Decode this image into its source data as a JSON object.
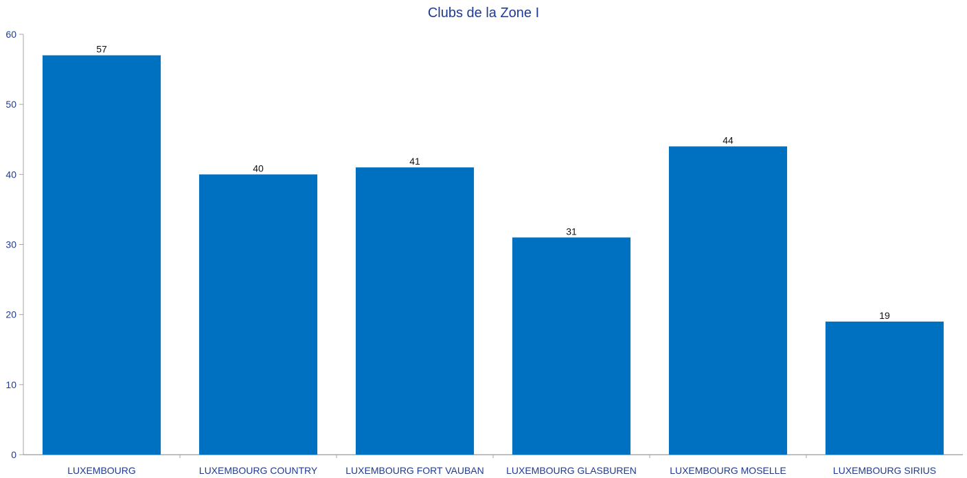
{
  "chart_data": {
    "type": "bar",
    "title": "Clubs de la Zone I",
    "xlabel": "",
    "ylabel": "",
    "categories": [
      "LUXEMBOURG",
      "LUXEMBOURG COUNTRY",
      "LUXEMBOURG FORT VAUBAN",
      "LUXEMBOURG GLASBUREN",
      "LUXEMBOURG MOSELLE",
      "LUXEMBOURG SIRIUS"
    ],
    "values": [
      57,
      40,
      41,
      31,
      44,
      19
    ],
    "ylim": [
      0,
      60
    ],
    "yticks": [
      0,
      10,
      20,
      30,
      40,
      50,
      60
    ],
    "grid": false,
    "legend": "none",
    "colors": {
      "bar": "#0070c0",
      "axis": "#a6a6a6",
      "text": "#1f3a93"
    }
  }
}
